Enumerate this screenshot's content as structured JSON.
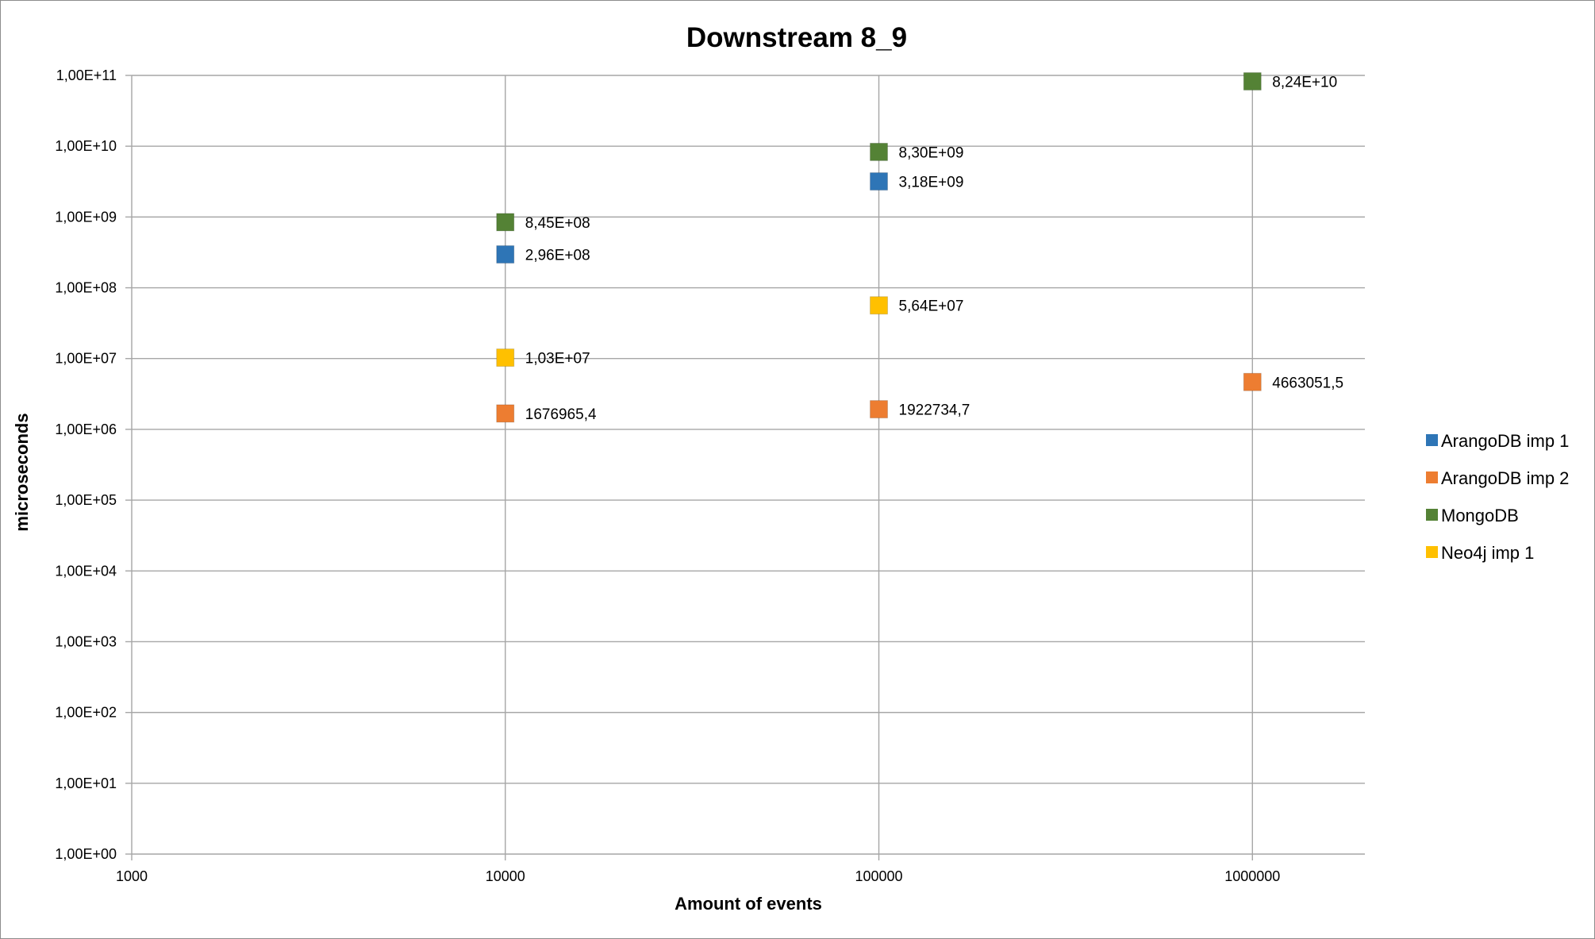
{
  "chart_data": {
    "type": "scatter",
    "title": "Downstream 8_9",
    "xlabel": "Amount of events",
    "ylabel": "microseconds",
    "xscale": "log",
    "yscale": "log",
    "xlim": [
      1000,
      2000000
    ],
    "ylim": [
      1,
      100000000000
    ],
    "x_ticks": [
      1000,
      10000,
      100000,
      1000000
    ],
    "x_tick_labels": [
      "1000",
      "10000",
      "100000",
      "1000000"
    ],
    "y_ticks": [
      1,
      10,
      100,
      1000,
      10000,
      100000,
      1000000,
      10000000,
      100000000,
      1000000000,
      10000000000,
      100000000000
    ],
    "y_tick_labels": [
      "1,00E+00",
      "1,00E+01",
      "1,00E+02",
      "1,00E+03",
      "1,00E+04",
      "1,00E+05",
      "1,00E+06",
      "1,00E+07",
      "1,00E+08",
      "1,00E+09",
      "1,00E+10",
      "1,00E+11"
    ],
    "grid": true,
    "legend_position": "right",
    "series": [
      {
        "name": "ArangoDB imp 1",
        "color": "#2e75b6",
        "points": [
          {
            "x": 10000,
            "y": 296000000,
            "label": "2,96E+08"
          },
          {
            "x": 100000,
            "y": 3180000000,
            "label": "3,18E+09"
          }
        ]
      },
      {
        "name": "ArangoDB imp 2",
        "color": "#ed7d31",
        "points": [
          {
            "x": 10000,
            "y": 1676965.4,
            "label": "1676965,4"
          },
          {
            "x": 100000,
            "y": 1922734.7,
            "label": "1922734,7"
          },
          {
            "x": 1000000,
            "y": 4663051.5,
            "label": "4663051,5"
          }
        ]
      },
      {
        "name": "MongoDB",
        "color": "#548235",
        "points": [
          {
            "x": 10000,
            "y": 845000000,
            "label": "8,45E+08"
          },
          {
            "x": 100000,
            "y": 8300000000,
            "label": "8,30E+09"
          },
          {
            "x": 1000000,
            "y": 82400000000,
            "label": "8,24E+10"
          }
        ]
      },
      {
        "name": "Neo4j imp 1",
        "color": "#ffc000",
        "points": [
          {
            "x": 10000,
            "y": 10300000,
            "label": "1,03E+07"
          },
          {
            "x": 100000,
            "y": 56400000,
            "label": "5,64E+07"
          }
        ]
      }
    ]
  }
}
